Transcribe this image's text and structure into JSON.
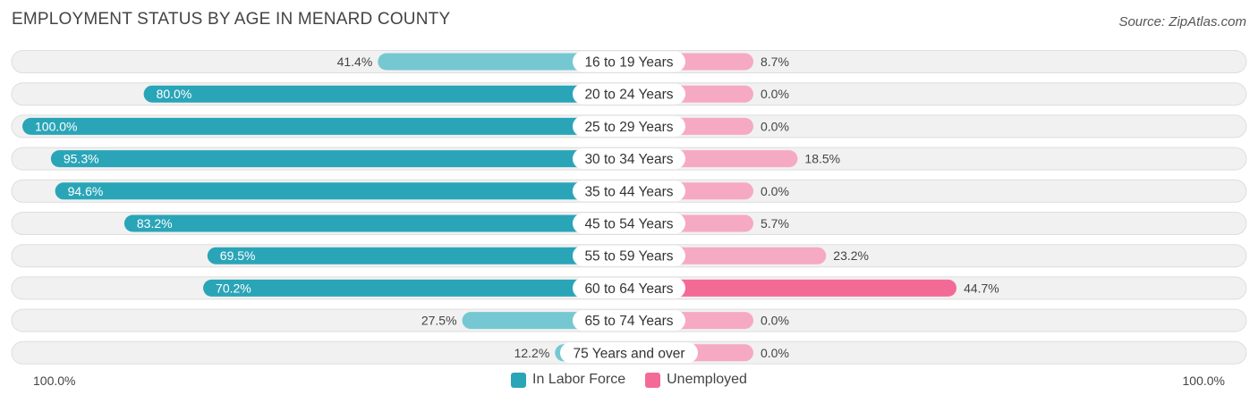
{
  "header": {
    "title": "EMPLOYMENT STATUS BY AGE IN MENARD COUNTY",
    "source": "Source: ZipAtlas.com"
  },
  "colors": {
    "labor_dark": "#2aa5b8",
    "labor_light": "#75c8d2",
    "unemp_dark": "#f46a96",
    "unemp_light": "#f6a9c3",
    "row_bg": "#f1f1f1",
    "row_border": "#dedede"
  },
  "axis": {
    "left_label": "100.0%",
    "right_label": "100.0%"
  },
  "legend": {
    "labor": "In Labor Force",
    "unemployed": "Unemployed"
  },
  "chart_data": {
    "type": "bar",
    "orientation": "horizontal-diverging",
    "title": "EMPLOYMENT STATUS BY AGE IN MENARD COUNTY",
    "categories": [
      "16 to 19 Years",
      "20 to 24 Years",
      "25 to 29 Years",
      "30 to 34 Years",
      "35 to 44 Years",
      "45 to 54 Years",
      "55 to 59 Years",
      "60 to 64 Years",
      "65 to 74 Years",
      "75 Years and over"
    ],
    "series": [
      {
        "name": "In Labor Force",
        "values": [
          41.4,
          80.0,
          100.0,
          95.3,
          94.6,
          83.2,
          69.5,
          70.2,
          27.5,
          12.2
        ],
        "labels": [
          "41.4%",
          "80.0%",
          "100.0%",
          "95.3%",
          "94.6%",
          "83.2%",
          "69.5%",
          "70.2%",
          "27.5%",
          "12.2%"
        ]
      },
      {
        "name": "Unemployed",
        "values": [
          8.7,
          0.0,
          0.0,
          18.5,
          0.0,
          5.7,
          23.2,
          44.7,
          0.0,
          0.0
        ],
        "labels": [
          "8.7%",
          "0.0%",
          "0.0%",
          "18.5%",
          "0.0%",
          "5.7%",
          "23.2%",
          "44.7%",
          "0.0%",
          "0.0%"
        ]
      }
    ],
    "xlim": [
      0,
      100
    ],
    "legend_position": "bottom-center"
  }
}
